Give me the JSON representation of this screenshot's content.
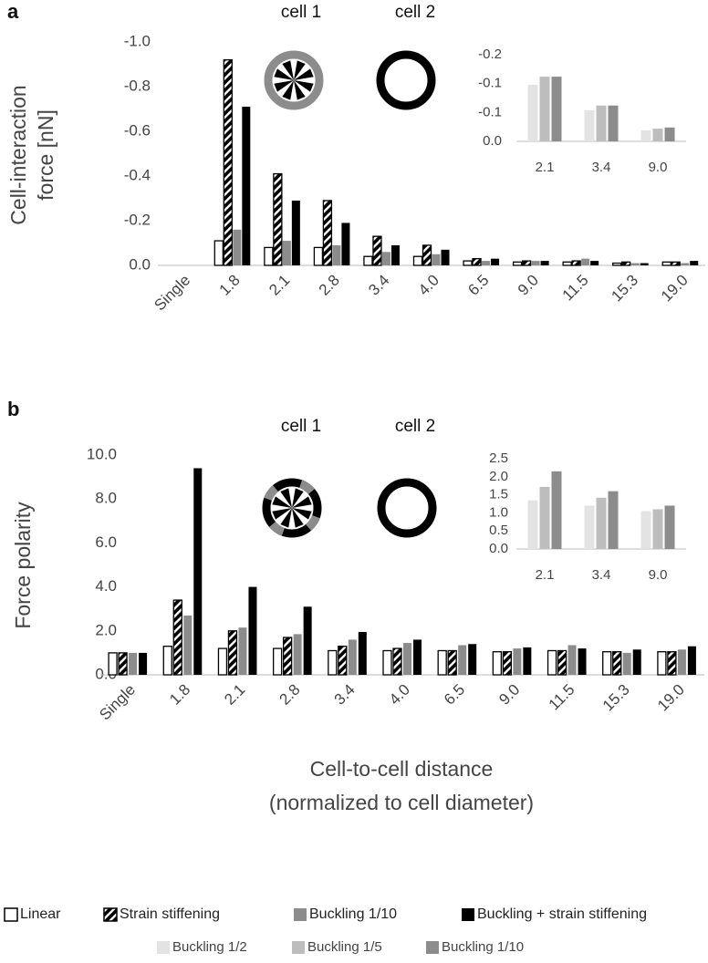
{
  "chart_data": [
    {
      "type": "bar",
      "panel_label": "a",
      "annotations": [
        "cell 1",
        "cell 2"
      ],
      "ylabel": [
        "Cell-interaction",
        "force [nN]"
      ],
      "categories": [
        "Single",
        "1.8",
        "2.1",
        "2.8",
        "3.4",
        "4.0",
        "6.5",
        "9.0",
        "11.5",
        "15.3",
        "19.0"
      ],
      "series": [
        {
          "name": "Linear",
          "color": "#ffffff",
          "edgecolor": "#000000",
          "values": [
            0,
            -0.11,
            -0.08,
            -0.08,
            -0.04,
            -0.04,
            -0.02,
            -0.015,
            -0.015,
            -0.01,
            -0.015
          ]
        },
        {
          "name": "Strain stiffening",
          "color": "#000000",
          "edgecolor": "#000000",
          "hatch": true,
          "values": [
            0,
            -0.92,
            -0.41,
            -0.29,
            -0.13,
            -0.09,
            -0.03,
            -0.02,
            -0.02,
            -0.015,
            -0.015
          ]
        },
        {
          "name": "Buckling 1/10",
          "color": "#8c8c8c",
          "values": [
            0,
            -0.16,
            -0.11,
            -0.09,
            -0.06,
            -0.05,
            -0.02,
            -0.02,
            -0.03,
            -0.01,
            -0.01
          ]
        },
        {
          "name": "Buckling + strain stiffening",
          "color": "#000000",
          "values": [
            0,
            -0.71,
            -0.29,
            -0.19,
            -0.09,
            -0.07,
            -0.03,
            -0.02,
            -0.02,
            -0.01,
            -0.02
          ]
        }
      ],
      "ylim": [
        0,
        -1
      ],
      "yticks": [
        {
          "value": 0,
          "label": "0.0"
        },
        {
          "value": -0.2,
          "label": "-0.2"
        },
        {
          "value": -0.4,
          "label": "-0.4"
        },
        {
          "value": -0.6,
          "label": "-0.6"
        },
        {
          "value": -0.8,
          "label": "-0.8"
        },
        {
          "value": -1,
          "label": "-1.0"
        }
      ]
    },
    {
      "type": "bar",
      "categories": [
        "2.1",
        "3.4",
        "9.0"
      ],
      "series": [
        {
          "name": "Buckling 1/2",
          "color": "#e3e3e3",
          "values": [
            -0.098,
            -0.054,
            -0.019
          ]
        },
        {
          "name": "Buckling 1/5",
          "color": "#bdbdbd",
          "values": [
            -0.112,
            -0.062,
            -0.022
          ]
        },
        {
          "name": "Buckling 1/10",
          "color": "#8c8c8c",
          "values": [
            -0.112,
            -0.062,
            -0.024
          ]
        }
      ],
      "ylim": [
        0,
        -0.15
      ],
      "yticks": [
        {
          "value": 0,
          "label": "0.0"
        },
        {
          "value": -0.05,
          "label": "-0.1"
        },
        {
          "value": -0.1,
          "label": "-0.1"
        },
        {
          "value": -0.15,
          "label": "-0.2"
        }
      ]
    },
    {
      "type": "bar",
      "panel_label": "b",
      "annotations": [
        "cell 1",
        "cell 2"
      ],
      "ylabel": [
        "Force polarity"
      ],
      "xlabel": [
        "Cell-to-cell distance",
        "(normalized to cell diameter)"
      ],
      "categories": [
        "Single",
        "1.8",
        "2.1",
        "2.8",
        "3.4",
        "4.0",
        "6.5",
        "9.0",
        "11.5",
        "15.3",
        "19.0"
      ],
      "series": [
        {
          "color": "#ffffff",
          "edgecolor": "#000000",
          "values": [
            1.0,
            1.3,
            1.2,
            1.2,
            1.1,
            1.1,
            1.1,
            1.05,
            1.1,
            1.05,
            1.05
          ]
        },
        {
          "color": "#000000",
          "edgecolor": "#000000",
          "hatch": true,
          "values": [
            1.0,
            3.4,
            2.0,
            1.7,
            1.3,
            1.2,
            1.1,
            1.05,
            1.1,
            1.05,
            1.05
          ]
        },
        {
          "color": "#8c8c8c",
          "values": [
            1.0,
            2.7,
            2.15,
            1.85,
            1.6,
            1.45,
            1.35,
            1.2,
            1.35,
            1.0,
            1.15
          ]
        },
        {
          "color": "#000000",
          "values": [
            1.0,
            9.4,
            4.0,
            3.1,
            1.95,
            1.6,
            1.4,
            1.25,
            1.2,
            1.15,
            1.3
          ]
        }
      ],
      "ylim": [
        0,
        10
      ],
      "yticks": [
        {
          "value": 0,
          "label": "0.0"
        },
        {
          "value": 2,
          "label": "2.0"
        },
        {
          "value": 4,
          "label": "4.0"
        },
        {
          "value": 6,
          "label": "6.0"
        },
        {
          "value": 8,
          "label": "8.0"
        },
        {
          "value": 10,
          "label": "10.0"
        }
      ]
    },
    {
      "type": "bar",
      "categories": [
        "2.1",
        "3.4",
        "9.0"
      ],
      "series": [
        {
          "color": "#e3e3e3",
          "values": [
            1.35,
            1.2,
            1.05
          ]
        },
        {
          "color": "#bdbdbd",
          "values": [
            1.72,
            1.42,
            1.1
          ]
        },
        {
          "color": "#8c8c8c",
          "values": [
            2.15,
            1.6,
            1.2
          ]
        }
      ],
      "ylim": [
        0,
        2.5
      ],
      "yticks": [
        {
          "value": 0,
          "label": "0.0"
        },
        {
          "value": 0.5,
          "label": "0.5"
        },
        {
          "value": 1,
          "label": "1.0"
        },
        {
          "value": 1.5,
          "label": "1.5"
        },
        {
          "value": 2,
          "label": "2.0"
        },
        {
          "value": 2.5,
          "label": "2.5"
        }
      ]
    }
  ]
}
